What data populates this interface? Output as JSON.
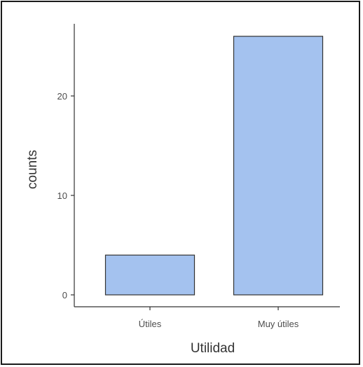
{
  "chart_data": {
    "type": "bar",
    "categories": [
      "Útiles",
      "Muy útiles"
    ],
    "values": [
      4,
      26
    ],
    "xlabel": "Utilidad",
    "ylabel": "counts",
    "ylim": [
      0,
      27
    ],
    "yticks": [
      0,
      10,
      20
    ],
    "grid": false,
    "bar_color": "#a4c2ef",
    "bar_edge_color": "#333333"
  }
}
